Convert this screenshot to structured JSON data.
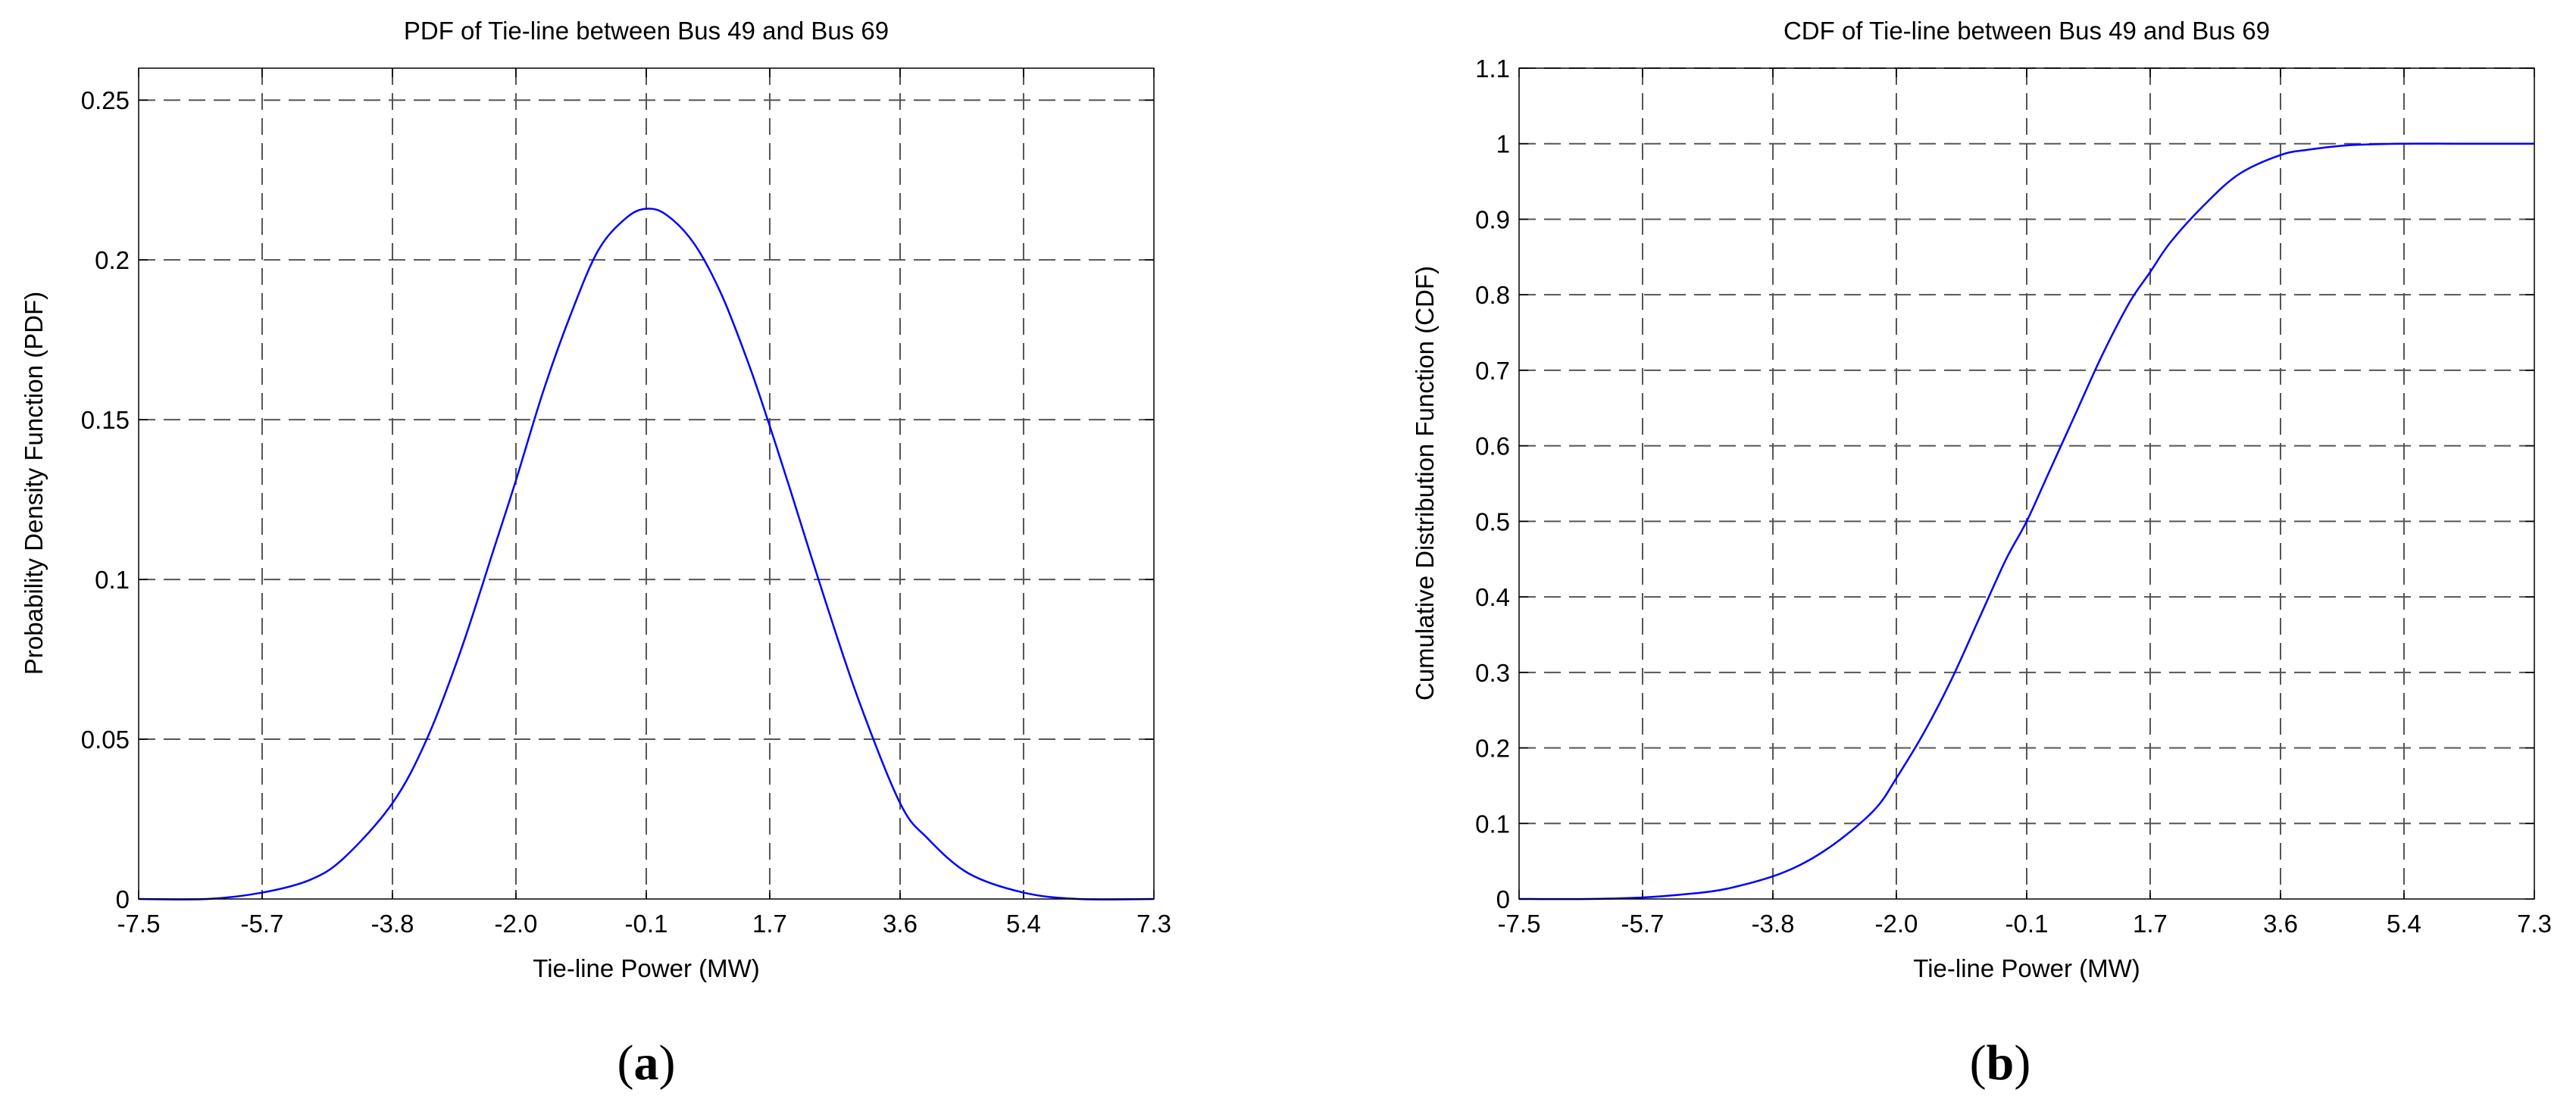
{
  "chart_data": [
    {
      "id": "a",
      "type": "line",
      "title": "PDF of Tie-line between Bus 49 and Bus 69",
      "xlabel": "Tie-line Power (MW)",
      "ylabel": "Probability Density Function (PDF)",
      "panel_label": "a",
      "xlim": [
        -7.5,
        7.3
      ],
      "ylim": [
        0,
        0.26
      ],
      "xticks": [
        -7.5,
        -5.7,
        -3.8,
        -2.0,
        -0.1,
        1.7,
        3.6,
        5.4,
        7.3
      ],
      "xticklabels": [
        "-7.5",
        "-5.7",
        "-3.8",
        "-2.0",
        "-0.1",
        "1.7",
        "3.6",
        "5.4",
        "7.3"
      ],
      "yticks": [
        0,
        0.05,
        0.1,
        0.15,
        0.2,
        0.25
      ],
      "yticklabels": [
        "0",
        "0.05",
        "0.1",
        "0.15",
        "0.2",
        "0.25"
      ],
      "grid": true,
      "series": [
        {
          "color": "#0000ff",
          "x": [
            -7.5,
            -6.5,
            -5.7,
            -5.0,
            -4.5,
            -3.8,
            -3.3,
            -2.8,
            -2.3,
            -2.0,
            -1.6,
            -1.2,
            -0.8,
            -0.4,
            -0.1,
            0.2,
            0.6,
            1.0,
            1.4,
            1.7,
            2.0,
            2.5,
            3.0,
            3.6,
            4.0,
            4.6,
            5.4,
            6.2,
            7.3
          ],
          "y": [
            0.0,
            0.0,
            0.002,
            0.006,
            0.013,
            0.03,
            0.05,
            0.078,
            0.111,
            0.131,
            0.159,
            0.183,
            0.203,
            0.213,
            0.216,
            0.214,
            0.205,
            0.189,
            0.167,
            0.148,
            0.128,
            0.094,
            0.062,
            0.03,
            0.019,
            0.008,
            0.002,
            0.0,
            0.0
          ]
        }
      ]
    },
    {
      "id": "b",
      "type": "line",
      "title": "CDF of Tie-line between Bus 49 and Bus 69",
      "xlabel": "Tie-line Power (MW)",
      "ylabel": "Cumulative Distribution Function (CDF)",
      "panel_label": "b",
      "xlim": [
        -7.5,
        7.3
      ],
      "ylim": [
        0,
        1.1
      ],
      "xticks": [
        -7.5,
        -5.7,
        -3.8,
        -2.0,
        -0.1,
        1.7,
        3.6,
        5.4,
        7.3
      ],
      "xticklabels": [
        "-7.5",
        "-5.7",
        "-3.8",
        "-2.0",
        "-0.1",
        "1.7",
        "3.6",
        "5.4",
        "7.3"
      ],
      "yticks": [
        0,
        0.1,
        0.2,
        0.3,
        0.4,
        0.5,
        0.6,
        0.7,
        0.8,
        0.9,
        1,
        1.1
      ],
      "yticklabels": [
        "0",
        "0.1",
        "0.2",
        "0.3",
        "0.4",
        "0.5",
        "0.6",
        "0.7",
        "0.8",
        "0.9",
        "1",
        "1.1"
      ],
      "grid": true,
      "series": [
        {
          "color": "#0000ff",
          "x": [
            -7.5,
            -6.5,
            -5.7,
            -5.0,
            -4.5,
            -3.8,
            -3.3,
            -2.8,
            -2.3,
            -2.0,
            -1.6,
            -1.2,
            -0.8,
            -0.4,
            -0.1,
            0.2,
            0.6,
            1.0,
            1.4,
            1.7,
            2.0,
            2.5,
            3.0,
            3.6,
            4.0,
            4.6,
            5.4,
            6.2,
            7.3
          ],
          "y": [
            0.0,
            0.0,
            0.002,
            0.007,
            0.013,
            0.03,
            0.05,
            0.08,
            0.12,
            0.16,
            0.22,
            0.29,
            0.37,
            0.45,
            0.5,
            0.56,
            0.64,
            0.72,
            0.79,
            0.83,
            0.87,
            0.92,
            0.96,
            0.985,
            0.992,
            0.998,
            1.0,
            1.0,
            1.0
          ]
        }
      ]
    }
  ]
}
